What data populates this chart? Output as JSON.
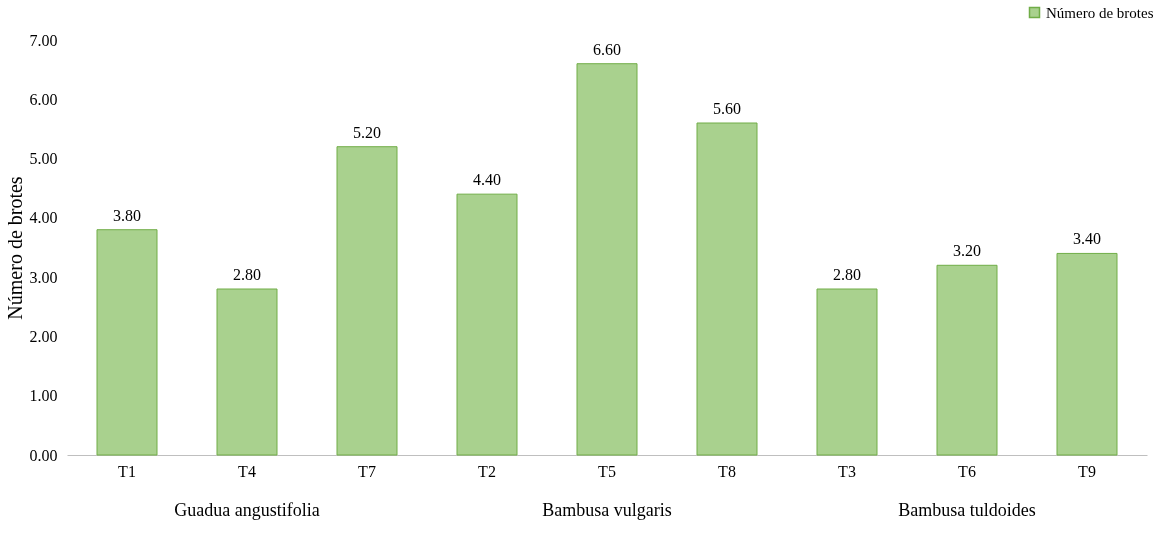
{
  "chart_data": {
    "type": "bar",
    "ylabel": "Número de brotes",
    "categories": [
      "T1",
      "T4",
      "T7",
      "T2",
      "T5",
      "T8",
      "T3",
      "T6",
      "T9"
    ],
    "series": [
      {
        "name": "Número de brotes",
        "color": "#a9d18e",
        "values": [
          3.8,
          2.8,
          5.2,
          4.4,
          6.6,
          5.6,
          2.8,
          3.2,
          3.4
        ]
      }
    ],
    "value_labels": [
      "3.80",
      "2.80",
      "5.20",
      "4.40",
      "6.60",
      "5.60",
      "2.80",
      "3.20",
      "3.40"
    ],
    "ylim": [
      0,
      7
    ],
    "yticks": [
      {
        "value": 0,
        "label": "0.00"
      },
      {
        "value": 1,
        "label": "1.00"
      },
      {
        "value": 2,
        "label": "2.00"
      },
      {
        "value": 3,
        "label": "3.00"
      },
      {
        "value": 4,
        "label": "4.00"
      },
      {
        "value": 5,
        "label": "5.00"
      },
      {
        "value": 6,
        "label": "6.00"
      },
      {
        "value": 7,
        "label": "7.00"
      }
    ],
    "annotations": [
      "Guadua angustifolia",
      "Bambusa vulgaris",
      "Bambusa tuldoides"
    ],
    "grid": false,
    "legend": "top right"
  }
}
